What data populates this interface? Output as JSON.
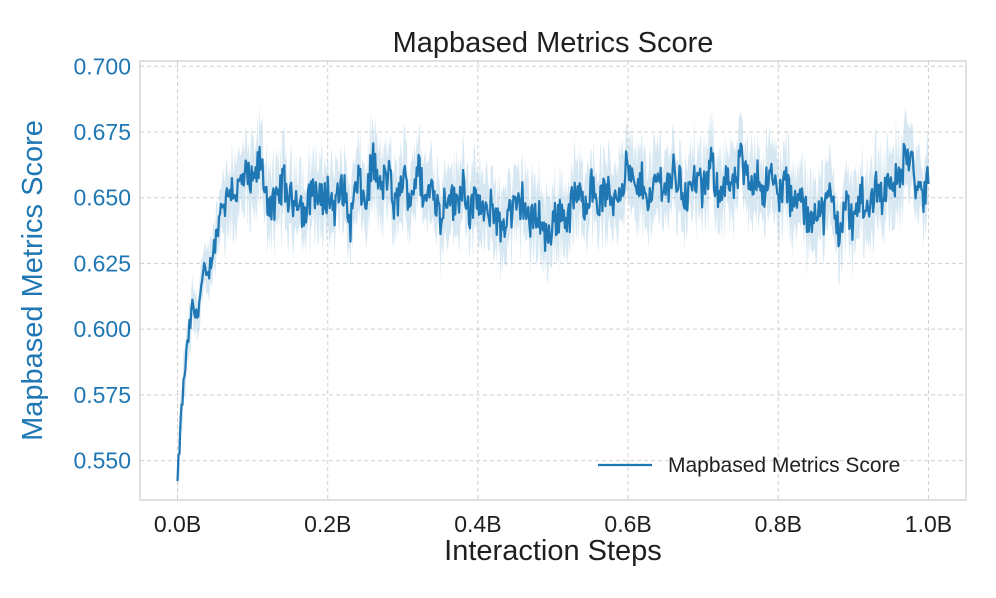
{
  "chart_data": {
    "type": "line",
    "title": "Mapbased Metrics Score",
    "xlabel": "Interaction Steps",
    "ylabel": "Mapbased Metrics Score",
    "xlim": [
      -0.05,
      1.05
    ],
    "ylim": [
      0.535,
      0.702
    ],
    "xticks": [
      0.0,
      0.2,
      0.4,
      0.6,
      0.8,
      1.0
    ],
    "xtick_labels": [
      "0.0B",
      "0.2B",
      "0.4B",
      "0.6B",
      "0.8B",
      "1.0B"
    ],
    "yticks": [
      0.55,
      0.575,
      0.6,
      0.625,
      0.65,
      0.675,
      0.7
    ],
    "ytick_labels": [
      "0.550",
      "0.575",
      "0.600",
      "0.625",
      "0.650",
      "0.675",
      "0.700"
    ],
    "grid": true,
    "legend_position": "bottom-right",
    "colors": {
      "line": "#1f77b4",
      "band": "#a6cbe3",
      "axis_label": "#1f77b4"
    },
    "series": [
      {
        "name": "Mapbased Metrics Score",
        "x": [
          0.0,
          0.005,
          0.01,
          0.015,
          0.02,
          0.025,
          0.03,
          0.035,
          0.04,
          0.045,
          0.05,
          0.055,
          0.06,
          0.065,
          0.07,
          0.08,
          0.09,
          0.1,
          0.11,
          0.12,
          0.13,
          0.14,
          0.15,
          0.16,
          0.17,
          0.18,
          0.19,
          0.2,
          0.21,
          0.22,
          0.23,
          0.24,
          0.25,
          0.26,
          0.27,
          0.28,
          0.29,
          0.3,
          0.31,
          0.32,
          0.33,
          0.34,
          0.35,
          0.36,
          0.37,
          0.38,
          0.39,
          0.4,
          0.41,
          0.42,
          0.43,
          0.44,
          0.45,
          0.46,
          0.47,
          0.48,
          0.49,
          0.5,
          0.51,
          0.52,
          0.53,
          0.54,
          0.55,
          0.56,
          0.57,
          0.58,
          0.59,
          0.6,
          0.61,
          0.62,
          0.63,
          0.64,
          0.65,
          0.66,
          0.67,
          0.68,
          0.69,
          0.7,
          0.71,
          0.72,
          0.73,
          0.74,
          0.75,
          0.76,
          0.77,
          0.78,
          0.79,
          0.8,
          0.81,
          0.82,
          0.83,
          0.84,
          0.85,
          0.86,
          0.87,
          0.88,
          0.89,
          0.9,
          0.91,
          0.92,
          0.93,
          0.94,
          0.95,
          0.96,
          0.97,
          0.98,
          0.99,
          1.0
        ],
        "y": [
          0.541,
          0.568,
          0.585,
          0.598,
          0.609,
          0.604,
          0.613,
          0.622,
          0.618,
          0.627,
          0.633,
          0.641,
          0.65,
          0.648,
          0.655,
          0.652,
          0.658,
          0.654,
          0.664,
          0.65,
          0.645,
          0.657,
          0.648,
          0.652,
          0.642,
          0.655,
          0.648,
          0.652,
          0.646,
          0.655,
          0.64,
          0.657,
          0.647,
          0.665,
          0.652,
          0.66,
          0.645,
          0.658,
          0.65,
          0.662,
          0.648,
          0.656,
          0.642,
          0.654,
          0.646,
          0.657,
          0.644,
          0.65,
          0.641,
          0.648,
          0.637,
          0.645,
          0.644,
          0.65,
          0.639,
          0.646,
          0.634,
          0.64,
          0.645,
          0.642,
          0.652,
          0.647,
          0.655,
          0.648,
          0.652,
          0.649,
          0.655,
          0.662,
          0.651,
          0.657,
          0.648,
          0.659,
          0.653,
          0.66,
          0.655,
          0.65,
          0.658,
          0.651,
          0.663,
          0.653,
          0.657,
          0.652,
          0.664,
          0.655,
          0.66,
          0.653,
          0.658,
          0.651,
          0.656,
          0.646,
          0.65,
          0.64,
          0.648,
          0.643,
          0.652,
          0.637,
          0.648,
          0.64,
          0.652,
          0.643,
          0.656,
          0.65,
          0.66,
          0.654,
          0.668,
          0.66,
          0.648,
          0.656
        ],
        "band": 0.012
      }
    ]
  }
}
